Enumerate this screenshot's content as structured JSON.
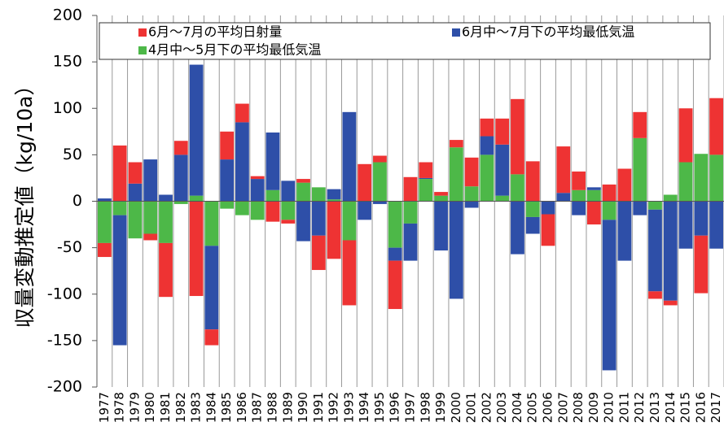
{
  "chart_data": {
    "type": "bar",
    "stacked": true,
    "y_label": "収量変動推定値（kg/10a）",
    "categories": [
      "1977",
      "1978",
      "1979",
      "1980",
      "1981",
      "1982",
      "1983",
      "1984",
      "1985",
      "1986",
      "1987",
      "1988",
      "1989",
      "1990",
      "1991",
      "1992",
      "1993",
      "1994",
      "1995",
      "1996",
      "1997",
      "1998",
      "1999",
      "2000",
      "2001",
      "2002",
      "2003",
      "2004",
      "2005",
      "2006",
      "2007",
      "2008",
      "2009",
      "2010",
      "2011",
      "2012",
      "2013",
      "2014",
      "2015",
      "2016",
      "2017"
    ],
    "series": [
      {
        "name": "4月中～5月下の平均最低気温",
        "color": "#4db848",
        "values": [
          -45,
          -15,
          -40,
          -35,
          -45,
          -3,
          6,
          -48,
          -8,
          -15,
          -20,
          12,
          -20,
          20,
          15,
          2,
          -42,
          0,
          42,
          -50,
          -24,
          24,
          6,
          58,
          16,
          50,
          6,
          29,
          -17,
          0,
          0,
          12,
          12,
          -20,
          0,
          68,
          -9,
          7,
          42,
          51,
          50
        ]
      },
      {
        "name": "6月中～7月下の平均最低気温",
        "color": "#2e4fa8",
        "values": [
          3,
          -140,
          19,
          45,
          7,
          50,
          141,
          -90,
          45,
          85,
          24,
          62,
          22,
          -43,
          -37,
          11,
          96,
          -20,
          -3,
          -14,
          -40,
          1,
          -53,
          -105,
          -7,
          20,
          55,
          -57,
          -18,
          -14,
          9,
          -15,
          3,
          -162,
          -64,
          -15,
          -88,
          -107,
          -51,
          -37,
          -51
        ]
      },
      {
        "name": "6月～7月の平均日射量",
        "color": "#ee3333",
        "values": [
          -15,
          60,
          23,
          -7,
          -58,
          15,
          -102,
          -17,
          30,
          20,
          3,
          -22,
          -4,
          4,
          -37,
          -62,
          -70,
          40,
          7,
          -52,
          26,
          17,
          4,
          8,
          31,
          19,
          28,
          81,
          43,
          -34,
          50,
          20,
          -25,
          18,
          35,
          28,
          -8,
          -5,
          58,
          -62,
          61
        ]
      }
    ],
    "legend_order": [
      2,
      1,
      0
    ],
    "ylim": [
      -200,
      200
    ],
    "yticks": [
      -200,
      -150,
      -100,
      -50,
      0,
      50,
      100,
      150,
      200
    ]
  }
}
